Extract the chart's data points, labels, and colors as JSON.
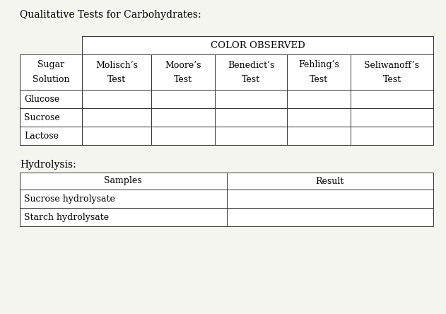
{
  "title": "Qualitative Tests for Carbohydrates:",
  "title_fontsize": 10,
  "background_color": "#f5f5f0",
  "table1": {
    "color_observed_label": "COLOR OBSERVED",
    "col0_header_line1": "Sugar",
    "col0_header_line2": "Solution",
    "col_headers_line1": [
      "Molisch’s",
      "Moore’s",
      "Benedict’s",
      "Fehling’s",
      "Seliwanoff’s"
    ],
    "col_headers_line2": [
      "Test",
      "Test",
      "Test",
      "Test",
      "Test"
    ],
    "row_labels": [
      "Glucose",
      "Sucrose",
      "Lactose"
    ]
  },
  "table2": {
    "hydrolysis_label": "Hydrolysis:",
    "col_headers": [
      "Samples",
      "Result"
    ],
    "row_labels": [
      "Sucrose hydrolysate",
      "Starch hydrolysate"
    ]
  },
  "font_family": "serif",
  "font_size": 9,
  "lw": 0.7
}
